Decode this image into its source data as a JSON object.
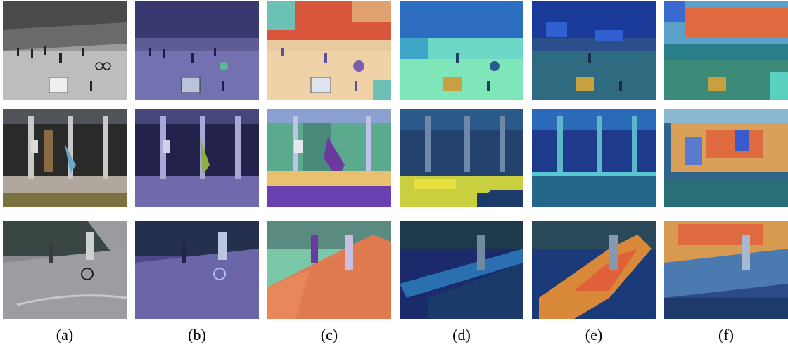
{
  "figure": {
    "column_labels": [
      "(a)",
      "(b)",
      "(c)",
      "(d)",
      "(e)",
      "(f)"
    ],
    "rows": [
      {
        "scene": "campus-plaza-pedestrians",
        "tiles": [
          "grayscale-frame",
          "blue-tinted-frame",
          "red-yellow-heatmap",
          "cyan-green-heatmap",
          "blue-heatmap",
          "blue-red-heatmap"
        ]
      },
      {
        "scene": "walkway-pillars-runner",
        "tiles": [
          "color-frame",
          "blue-tinted-frame",
          "green-purple-heatmap",
          "yellow-ground-heatmap",
          "blue-heatmap",
          "red-orange-heatmap"
        ]
      },
      {
        "scene": "cyclist-on-road",
        "tiles": [
          "color-frame",
          "blue-tinted-frame",
          "orange-road-heatmap",
          "blue-heatmap",
          "orange-road-heatmap",
          "orange-top-heatmap"
        ]
      }
    ]
  }
}
